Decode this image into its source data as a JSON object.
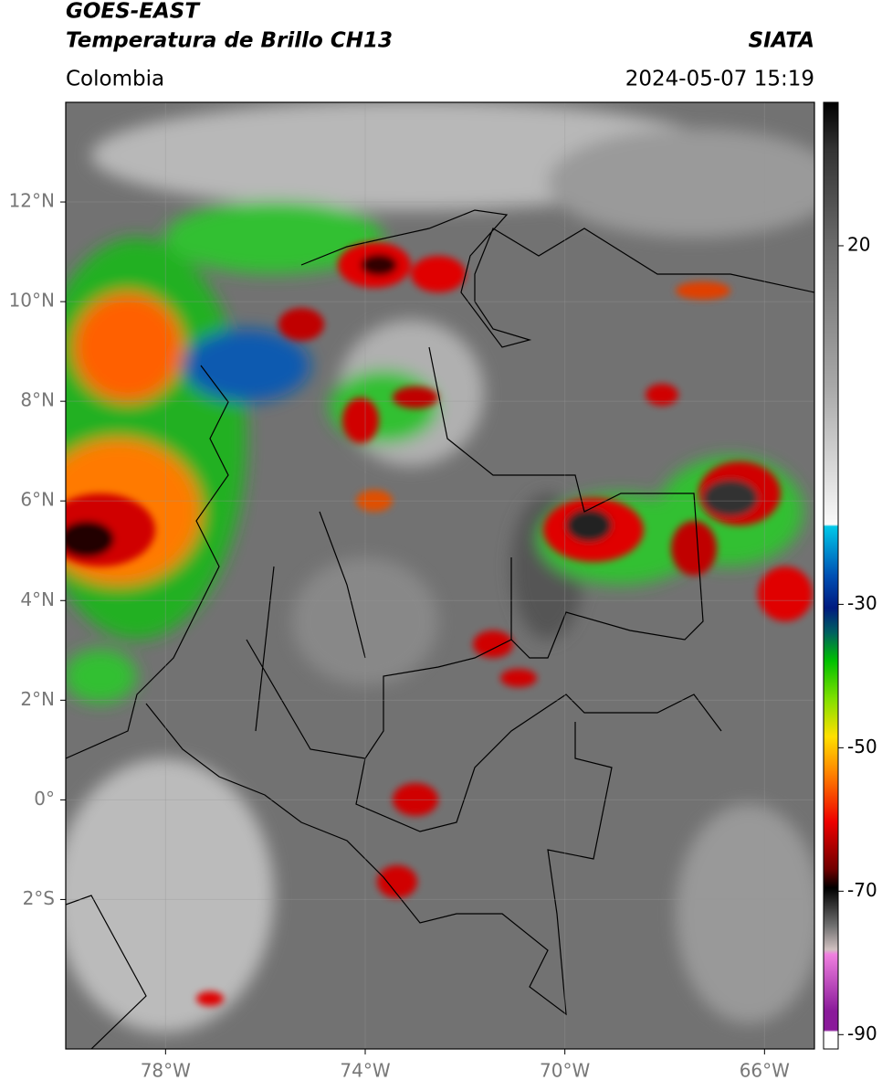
{
  "header": {
    "title": "GOES-EAST",
    "subtitle": "Temperatura de Brillo CH13",
    "source": "SIATA",
    "region": "Colombia",
    "timestamp": "2024-05-07 15:19"
  },
  "map": {
    "xlim": [
      -80,
      -65
    ],
    "ylim": [
      -5,
      14
    ],
    "xticks": [
      {
        "value": -78,
        "label": "78°W"
      },
      {
        "value": -74,
        "label": "74°W"
      },
      {
        "value": -70,
        "label": "70°W"
      },
      {
        "value": -66,
        "label": "66°W"
      }
    ],
    "yticks": [
      {
        "value": 12,
        "label": "12°N"
      },
      {
        "value": 10,
        "label": "10°N"
      },
      {
        "value": 8,
        "label": "8°N"
      },
      {
        "value": 6,
        "label": "6°N"
      },
      {
        "value": 4,
        "label": "4°N"
      },
      {
        "value": 2,
        "label": "2°N"
      },
      {
        "value": 0,
        "label": "0°"
      },
      {
        "value": -2,
        "label": "2°S"
      }
    ]
  },
  "colorbar": {
    "lim": [
      -92,
      40
    ],
    "ticks": [
      20,
      -30,
      -50,
      -70,
      -90
    ]
  }
}
